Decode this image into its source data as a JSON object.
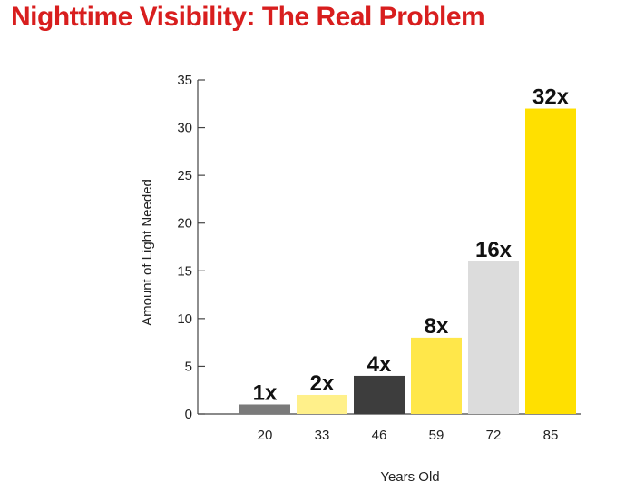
{
  "title": "Nighttime Visibility: The Real Problem",
  "chart_data": {
    "type": "bar",
    "title": "Nighttime Visibility: The Real Problem",
    "xlabel": "Years Old",
    "ylabel": "Amount of Light Needed",
    "categories": [
      "20",
      "33",
      "46",
      "59",
      "72",
      "85"
    ],
    "values": [
      1,
      2,
      4,
      8,
      16,
      32
    ],
    "data_labels": [
      "1x",
      "2x",
      "4x",
      "8x",
      "16x",
      "32x"
    ],
    "colors": [
      "#7a7a7a",
      "#fff08a",
      "#3d3d3d",
      "#ffe74a",
      "#dcdcdc",
      "#ffe000"
    ],
    "ylim": [
      0,
      35
    ],
    "yticks": [
      0,
      5,
      10,
      15,
      20,
      25,
      30,
      35
    ],
    "grid": false,
    "legend": "none"
  }
}
